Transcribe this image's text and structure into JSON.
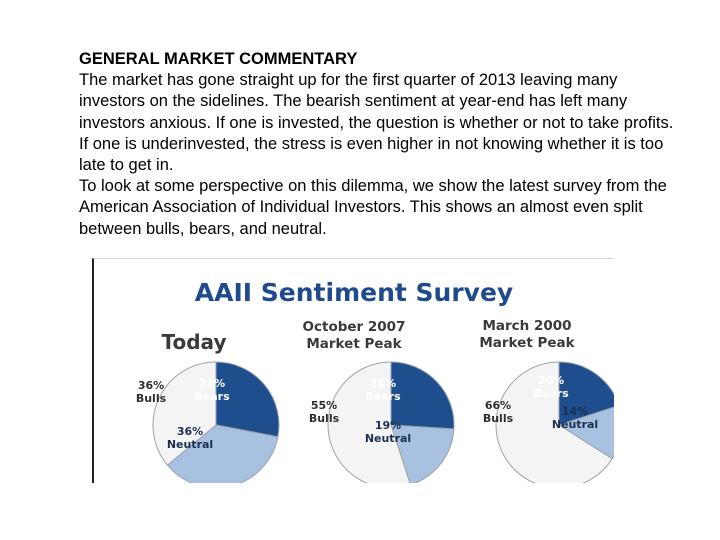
{
  "commentary": {
    "heading": "GENERAL MARKET COMMENTARY",
    "paragraph1": "The market has gone straight up for the first quarter of 2013 leaving many investors on the sidelines. The bearish sentiment at year-end has left many investors anxious. If one is invested, the question is whether or not to take profits. If one is underinvested, the stress is even higher in not knowing whether it is too late to get in.",
    "paragraph2": "To look at some perspective on this dilemma, we show the latest survey from the American Association of Individual Investors. This shows an almost even split between bulls, bears, and neutral."
  },
  "chart_data": {
    "type": "pie",
    "title": "AAII Sentiment Survey",
    "colors": {
      "Bears": "#1f4e8f",
      "Neutral": "#a8c1e0",
      "Bulls": "#f4f4f4",
      "title": "#1f4a8e"
    },
    "pies": [
      {
        "title_lines": [
          "Today"
        ],
        "slices": [
          {
            "name": "Bears",
            "value": 28,
            "label": [
              "28%",
              "Bears"
            ]
          },
          {
            "name": "Neutral",
            "value": 36,
            "label": [
              "36%",
              "Neutral"
            ]
          },
          {
            "name": "Bulls",
            "value": 36,
            "label": [
              "36%",
              "Bulls"
            ]
          }
        ]
      },
      {
        "title_lines": [
          "October 2007",
          "Market Peak"
        ],
        "slices": [
          {
            "name": "Bears",
            "value": 26,
            "label": [
              "26%",
              "Bears"
            ]
          },
          {
            "name": "Neutral",
            "value": 19,
            "label": [
              "19%",
              "Neutral"
            ]
          },
          {
            "name": "Bulls",
            "value": 55,
            "label": [
              "55%",
              "Bulls"
            ]
          }
        ]
      },
      {
        "title_lines": [
          "March 2000",
          "Market Peak"
        ],
        "slices": [
          {
            "name": "Bears",
            "value": 20,
            "label": [
              "20%",
              "Bears"
            ]
          },
          {
            "name": "Neutral",
            "value": 14,
            "label": [
              "14%",
              "Neutral"
            ]
          },
          {
            "name": "Bulls",
            "value": 66,
            "label": [
              "66%",
              "Bulls"
            ]
          }
        ]
      }
    ]
  }
}
